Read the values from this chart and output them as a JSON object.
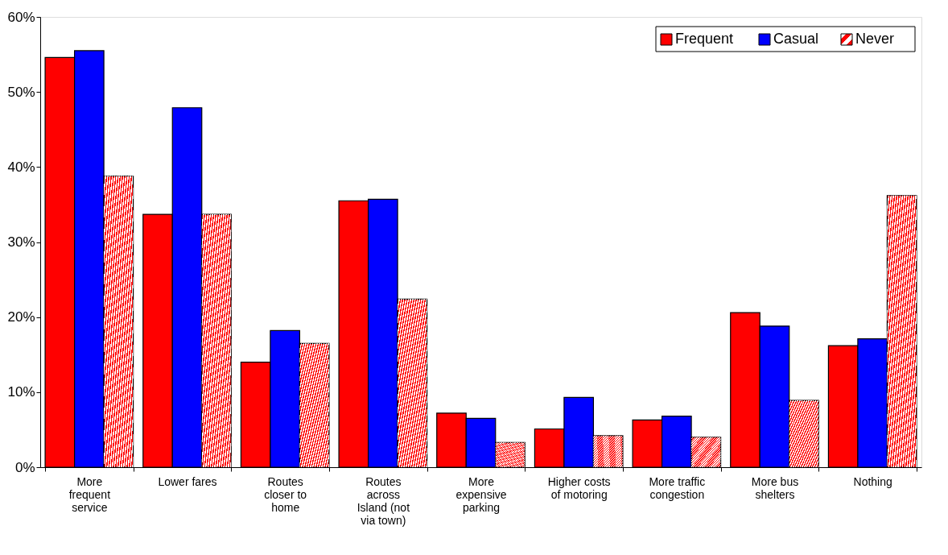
{
  "chart_data": {
    "type": "bar",
    "categories": [
      "More frequent service",
      "Lower fares",
      "Routes closer to home",
      "Routes across Island (not via town)",
      "More expensive parking",
      "Higher costs of motoring",
      "More traffic congestion",
      "More bus shelters",
      "Nothing"
    ],
    "series": [
      {
        "name": "Frequent",
        "color": "#ff0000",
        "values": [
          54.6,
          33.7,
          14.0,
          35.5,
          7.2,
          5.1,
          6.3,
          20.6,
          16.2
        ]
      },
      {
        "name": "Casual",
        "color": "#0000ff",
        "values": [
          55.5,
          47.9,
          18.2,
          35.7,
          6.5,
          9.3,
          6.8,
          18.8,
          17.1
        ]
      },
      {
        "name": "Never",
        "color": "#ff0000",
        "values": [
          38.8,
          33.7,
          16.5,
          22.4,
          3.3,
          4.2,
          4.0,
          8.9,
          36.2
        ]
      }
    ],
    "ylim": [
      0,
      60
    ],
    "yticks": [
      {
        "value": 0,
        "label": "0%"
      },
      {
        "value": 10,
        "label": "10%"
      },
      {
        "value": 20,
        "label": "20%"
      },
      {
        "value": 30,
        "label": "30%"
      },
      {
        "value": 40,
        "label": "40%"
      },
      {
        "value": 50,
        "label": "50%"
      },
      {
        "value": 60,
        "label": "60%"
      }
    ],
    "grid": false,
    "legend": "top right"
  }
}
